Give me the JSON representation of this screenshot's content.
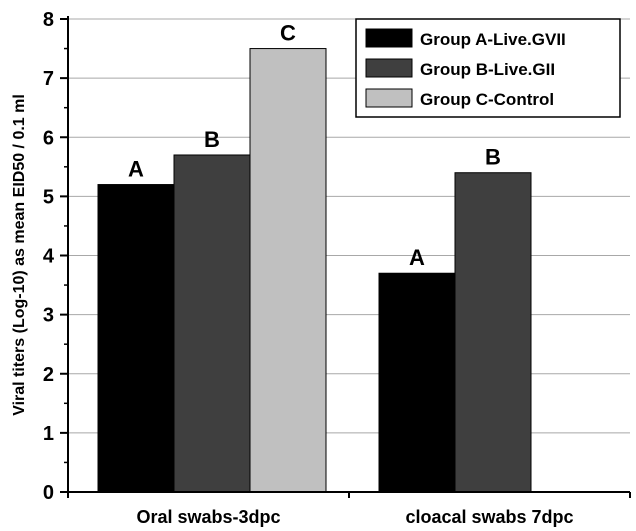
{
  "chart_data": {
    "type": "bar",
    "categories": [
      "Oral swabs-3dpc",
      "cloacal swabs 7dpc"
    ],
    "series": [
      {
        "name": "Group A-Live.GVII",
        "color": "#000000",
        "values": [
          5.2,
          3.7
        ],
        "labels": [
          "A",
          "A"
        ]
      },
      {
        "name": "Group B-Live.GII",
        "color": "#3f3f3f",
        "values": [
          5.7,
          5.4
        ],
        "labels": [
          "B",
          "B"
        ]
      },
      {
        "name": "Group C-Control",
        "color": "#c0c0c0",
        "values": [
          7.5,
          null
        ],
        "labels": [
          "C",
          null
        ]
      }
    ],
    "title": "",
    "xlabel": "",
    "ylabel": "Viral titers (Log-10)  as mean EID50 / 0.1 ml",
    "ylim": [
      0,
      8
    ],
    "yticks": [
      0,
      1,
      2,
      3,
      4,
      5,
      6,
      7,
      8
    ],
    "grid": "horizontal",
    "legend_position": "top-right"
  }
}
